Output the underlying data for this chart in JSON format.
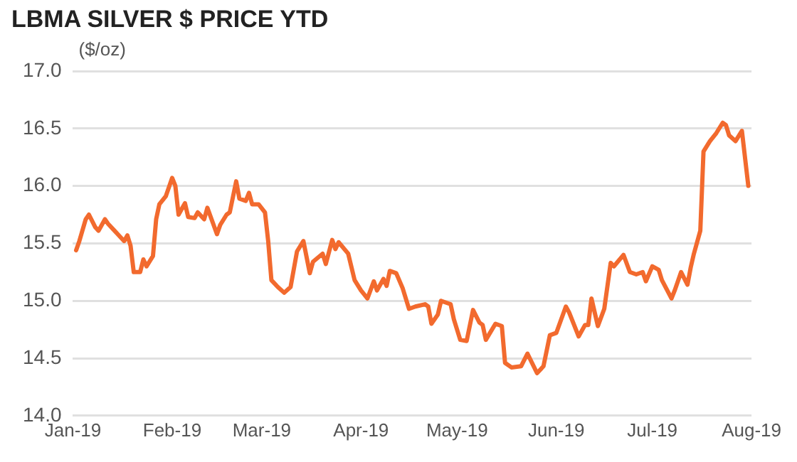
{
  "chart_data": {
    "type": "line",
    "title": "LBMA SILVER $ PRICE YTD",
    "ylabel": "($/oz)",
    "x": [
      "2019-01-02",
      "2019-01-03",
      "2019-01-05",
      "2019-01-06",
      "2019-01-08",
      "2019-01-09",
      "2019-01-11",
      "2019-01-12",
      "2019-01-14",
      "2019-01-15",
      "2019-01-17",
      "2019-01-18",
      "2019-01-19",
      "2019-01-20",
      "2019-01-22",
      "2019-01-23",
      "2019-01-24",
      "2019-01-26",
      "2019-01-27",
      "2019-01-28",
      "2019-01-30",
      "2019-02-01",
      "2019-02-02",
      "2019-02-03",
      "2019-02-05",
      "2019-02-06",
      "2019-02-08",
      "2019-02-09",
      "2019-02-11",
      "2019-02-12",
      "2019-02-15",
      "2019-02-16",
      "2019-02-18",
      "2019-02-19",
      "2019-02-21",
      "2019-02-22",
      "2019-02-24",
      "2019-02-25",
      "2019-02-26",
      "2019-02-28",
      "2019-03-02",
      "2019-03-03",
      "2019-03-04",
      "2019-03-06",
      "2019-03-08",
      "2019-03-10",
      "2019-03-12",
      "2019-03-14",
      "2019-03-16",
      "2019-03-17",
      "2019-03-20",
      "2019-03-21",
      "2019-03-23",
      "2019-03-24",
      "2019-03-25",
      "2019-03-28",
      "2019-03-30",
      "2019-04-01",
      "2019-04-03",
      "2019-04-05",
      "2019-04-06",
      "2019-04-08",
      "2019-04-09",
      "2019-04-10",
      "2019-04-12",
      "2019-04-14",
      "2019-04-16",
      "2019-04-18",
      "2019-04-21",
      "2019-04-22",
      "2019-04-23",
      "2019-04-25",
      "2019-04-26",
      "2019-04-29",
      "2019-04-30",
      "2019-05-02",
      "2019-05-04",
      "2019-05-06",
      "2019-05-08",
      "2019-05-09",
      "2019-05-10",
      "2019-05-13",
      "2019-05-15",
      "2019-05-16",
      "2019-05-18",
      "2019-05-21",
      "2019-05-23",
      "2019-05-26",
      "2019-05-28",
      "2019-05-30",
      "2019-06-01",
      "2019-06-04",
      "2019-06-05",
      "2019-06-08",
      "2019-06-10",
      "2019-06-11",
      "2019-06-12",
      "2019-06-14",
      "2019-06-16",
      "2019-06-18",
      "2019-06-19",
      "2019-06-22",
      "2019-06-24",
      "2019-06-26",
      "2019-06-28",
      "2019-06-29",
      "2019-07-01",
      "2019-07-03",
      "2019-07-04",
      "2019-07-07",
      "2019-07-08",
      "2019-07-10",
      "2019-07-12",
      "2019-07-13",
      "2019-07-14",
      "2019-07-16",
      "2019-07-17",
      "2019-07-19",
      "2019-07-21",
      "2019-07-23",
      "2019-07-24",
      "2019-07-25",
      "2019-07-27",
      "2019-07-29",
      "2019-07-31"
    ],
    "series": [
      {
        "color": "#f26a2e",
        "values": [
          15.44,
          15.52,
          15.71,
          15.75,
          15.64,
          15.61,
          15.71,
          15.67,
          15.61,
          15.58,
          15.52,
          15.57,
          15.48,
          15.25,
          15.25,
          15.36,
          15.3,
          15.39,
          15.71,
          15.84,
          15.91,
          16.07,
          16.0,
          15.75,
          15.85,
          15.73,
          15.72,
          15.77,
          15.71,
          15.81,
          15.58,
          15.66,
          15.75,
          15.77,
          16.04,
          15.89,
          15.87,
          15.94,
          15.84,
          15.84,
          15.77,
          15.52,
          15.18,
          15.12,
          15.07,
          15.12,
          15.43,
          15.52,
          15.24,
          15.34,
          15.41,
          15.32,
          15.53,
          15.45,
          15.51,
          15.41,
          15.18,
          15.09,
          15.02,
          15.17,
          15.09,
          15.19,
          15.13,
          15.26,
          15.24,
          15.11,
          14.93,
          14.95,
          14.97,
          14.95,
          14.8,
          14.88,
          15.0,
          14.97,
          14.84,
          14.66,
          14.65,
          14.92,
          14.81,
          14.79,
          14.66,
          14.8,
          14.78,
          14.46,
          14.42,
          14.43,
          14.54,
          14.37,
          14.43,
          14.7,
          14.72,
          14.95,
          14.9,
          14.69,
          14.79,
          14.79,
          15.02,
          14.78,
          14.93,
          15.33,
          15.3,
          15.4,
          15.25,
          15.23,
          15.25,
          15.17,
          15.3,
          15.27,
          15.18,
          15.02,
          15.09,
          15.25,
          15.14,
          15.29,
          15.41,
          15.61,
          16.3,
          16.39,
          16.46,
          16.55,
          16.53,
          16.44,
          16.39,
          16.48,
          16.0
        ]
      }
    ],
    "xlim": [
      "2019-01-01",
      "2019-08-01"
    ],
    "xticks": [
      {
        "value": "2019-01-01",
        "label": "Jan-19"
      },
      {
        "value": "2019-02-01",
        "label": "Feb-19"
      },
      {
        "value": "2019-03-01",
        "label": "Mar-19"
      },
      {
        "value": "2019-04-01",
        "label": "Apr-19"
      },
      {
        "value": "2019-05-01",
        "label": "May-19"
      },
      {
        "value": "2019-06-01",
        "label": "Jun-19"
      },
      {
        "value": "2019-07-01",
        "label": "Jul-19"
      },
      {
        "value": "2019-08-01",
        "label": "Aug-19"
      }
    ],
    "ylim": [
      14.0,
      17.0
    ],
    "yticks": [
      {
        "value": 14,
        "label": "14.0"
      },
      14.5,
      {
        "value": 15,
        "label": "15.0"
      },
      15.5,
      {
        "value": 16,
        "label": "16.0"
      },
      16.5,
      {
        "value": 17,
        "label": "17.0"
      }
    ],
    "grid": "y",
    "legend": false
  }
}
